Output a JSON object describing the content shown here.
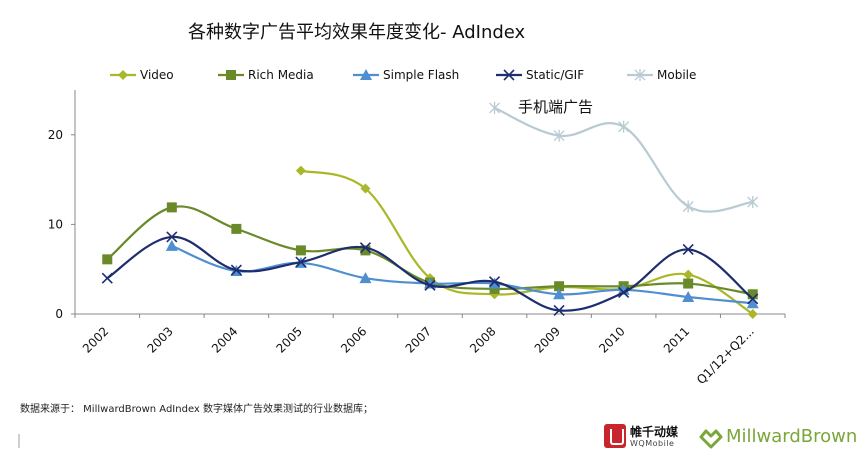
{
  "title": "各种数字广告平均效果年度变化- AdIndex",
  "annotation": "手机端广告",
  "source_note": "数据来源于： MillwardBrown AdIndex 数字媒体广告效果测试的行业数据库；",
  "logos": {
    "wq_cn": "帷千动媒",
    "wq_en": "WQMobile",
    "mb": "MillwardBrown"
  },
  "chart_data": {
    "type": "line",
    "title": "各种数字广告平均效果年度变化- AdIndex",
    "xlabel": "",
    "ylabel": "",
    "categories": [
      "2002",
      "2003",
      "2004",
      "2005",
      "2006",
      "2007",
      "2008",
      "2009",
      "2010",
      "2011",
      "Q1/12+Q2..."
    ],
    "y_ticks": [
      "0",
      "10",
      "20"
    ],
    "ylim": [
      0,
      25
    ],
    "grid": false,
    "legend_position": "top",
    "smooth": true,
    "series": [
      {
        "name": "Video",
        "color": "#a9b828",
        "marker": "diamond",
        "values": [
          null,
          null,
          null,
          16,
          14,
          4,
          2.2,
          3,
          2.8,
          4.4,
          0
        ]
      },
      {
        "name": "Rich Media",
        "color": "#6a8a2a",
        "marker": "square",
        "values": [
          6.1,
          11.9,
          9.5,
          7.1,
          7.1,
          3.5,
          2.8,
          3.1,
          3.1,
          3.4,
          2.2
        ]
      },
      {
        "name": "Simple Flash",
        "color": "#4f8fd0",
        "marker": "triangle",
        "values": [
          null,
          7.6,
          4.8,
          5.7,
          4,
          3.4,
          3.4,
          2.2,
          2.7,
          1.9,
          1.2
        ]
      },
      {
        "name": "Static/GIF",
        "color": "#1d2d6e",
        "marker": "x",
        "values": [
          4,
          8.6,
          4.9,
          5.8,
          7.4,
          3.2,
          3.6,
          0.4,
          2.4,
          7.2,
          1.7
        ]
      },
      {
        "name": "Mobile",
        "color": "#b8cad2",
        "marker": "star",
        "values": [
          null,
          null,
          null,
          null,
          null,
          null,
          23,
          19.9,
          20.9,
          12,
          12.5
        ]
      }
    ]
  }
}
